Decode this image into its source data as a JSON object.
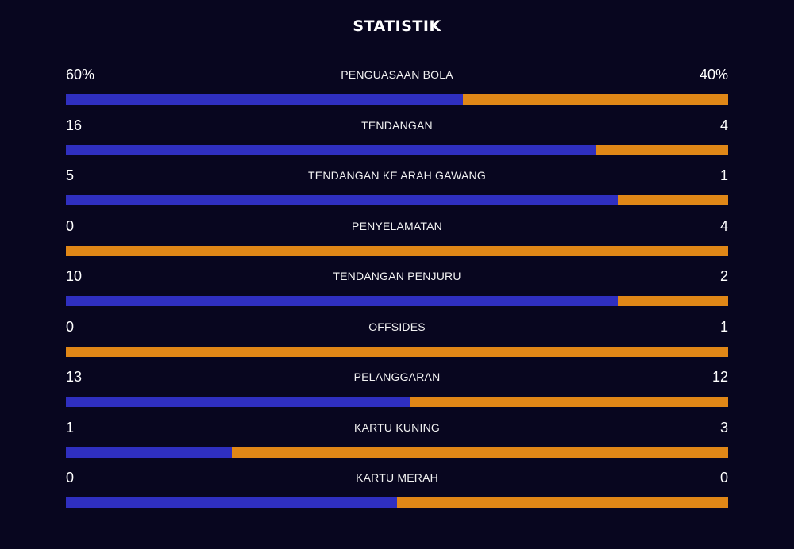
{
  "title": "STATISTIK",
  "colors": {
    "home": "#2f2fc0",
    "away": "#e08717",
    "background": "#08061f"
  },
  "stats": [
    {
      "label": "PENGUASAAN BOLA",
      "home": "60%",
      "away": "40%",
      "home_share": 0.6
    },
    {
      "label": "TENDANGAN",
      "home": "16",
      "away": "4",
      "home_share": 0.8
    },
    {
      "label": "TENDANGAN KE ARAH GAWANG",
      "home": "5",
      "away": "1",
      "home_share": 0.833
    },
    {
      "label": "PENYELAMATAN",
      "home": "0",
      "away": "4",
      "home_share": 0.0
    },
    {
      "label": "TENDANGAN PENJURU",
      "home": "10",
      "away": "2",
      "home_share": 0.833
    },
    {
      "label": "OFFSIDES",
      "home": "0",
      "away": "1",
      "home_share": 0.0
    },
    {
      "label": "PELANGGARAN",
      "home": "13",
      "away": "12",
      "home_share": 0.52
    },
    {
      "label": "KARTU KUNING",
      "home": "1",
      "away": "3",
      "home_share": 0.25
    },
    {
      "label": "KARTU MERAH",
      "home": "0",
      "away": "0",
      "home_share": 0.5
    }
  ]
}
